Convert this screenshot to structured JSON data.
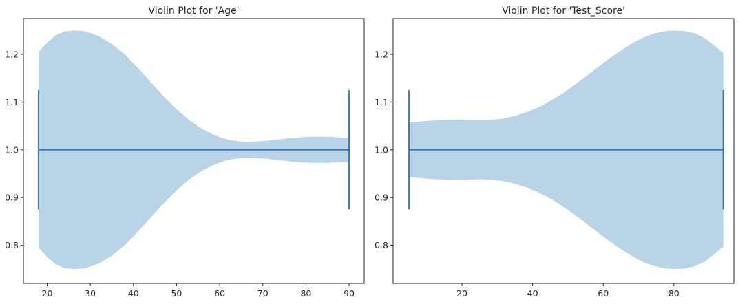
{
  "chart_data": [
    {
      "type": "violin",
      "orientation": "horizontal",
      "title": "Violin Plot for 'Age'",
      "xlim": [
        14.5,
        93.5
      ],
      "ylim": [
        0.72,
        1.275
      ],
      "xticks": [
        "20",
        "30",
        "40",
        "50",
        "60",
        "70",
        "80",
        "90"
      ],
      "yticks": [
        "0.8",
        "0.9",
        "1.0",
        "1.1",
        "1.2"
      ],
      "position": 1.0,
      "min": 18,
      "max": 90,
      "cap_half_height": 0.125,
      "body_color": "#b9d3e7",
      "line_color": "#3a7ab7",
      "density_half_width": [
        [
          18,
          0.205
        ],
        [
          20,
          0.225
        ],
        [
          22,
          0.24
        ],
        [
          24,
          0.248
        ],
        [
          26.5,
          0.25
        ],
        [
          29,
          0.248
        ],
        [
          32,
          0.238
        ],
        [
          35,
          0.222
        ],
        [
          38,
          0.2
        ],
        [
          41,
          0.172
        ],
        [
          44,
          0.142
        ],
        [
          47,
          0.112
        ],
        [
          50,
          0.085
        ],
        [
          53,
          0.062
        ],
        [
          56,
          0.043
        ],
        [
          59,
          0.03
        ],
        [
          62,
          0.021
        ],
        [
          65,
          0.017
        ],
        [
          68,
          0.017
        ],
        [
          71,
          0.019
        ],
        [
          74,
          0.022
        ],
        [
          77,
          0.025
        ],
        [
          80,
          0.027
        ],
        [
          83,
          0.0275
        ],
        [
          86,
          0.027
        ],
        [
          88,
          0.026
        ],
        [
          90,
          0.025
        ]
      ]
    },
    {
      "type": "violin",
      "orientation": "horizontal",
      "title": "Violin Plot for 'Test_Score'",
      "xlim": [
        0.5,
        97
      ],
      "ylim": [
        0.72,
        1.275
      ],
      "xticks": [
        "20",
        "40",
        "60",
        "80"
      ],
      "yticks": [
        "0.8",
        "0.9",
        "1.0",
        "1.1",
        "1.2"
      ],
      "position": 1.0,
      "min": 5,
      "max": 94,
      "cap_half_height": 0.125,
      "body_color": "#b9d3e7",
      "line_color": "#3a7ab7",
      "density_half_width": [
        [
          5,
          0.057
        ],
        [
          8,
          0.059
        ],
        [
          11,
          0.061
        ],
        [
          14,
          0.062
        ],
        [
          17,
          0.063
        ],
        [
          20,
          0.063
        ],
        [
          23,
          0.062
        ],
        [
          26,
          0.062
        ],
        [
          29,
          0.063
        ],
        [
          32,
          0.066
        ],
        [
          35,
          0.071
        ],
        [
          38,
          0.078
        ],
        [
          41,
          0.087
        ],
        [
          44,
          0.098
        ],
        [
          47,
          0.111
        ],
        [
          50,
          0.126
        ],
        [
          53,
          0.142
        ],
        [
          56,
          0.159
        ],
        [
          59,
          0.176
        ],
        [
          62,
          0.193
        ],
        [
          65,
          0.208
        ],
        [
          68,
          0.222
        ],
        [
          71,
          0.234
        ],
        [
          74,
          0.243
        ],
        [
          77,
          0.248
        ],
        [
          80,
          0.25
        ],
        [
          83,
          0.249
        ],
        [
          86,
          0.244
        ],
        [
          89,
          0.233
        ],
        [
          92,
          0.215
        ],
        [
          94,
          0.203
        ]
      ]
    }
  ]
}
